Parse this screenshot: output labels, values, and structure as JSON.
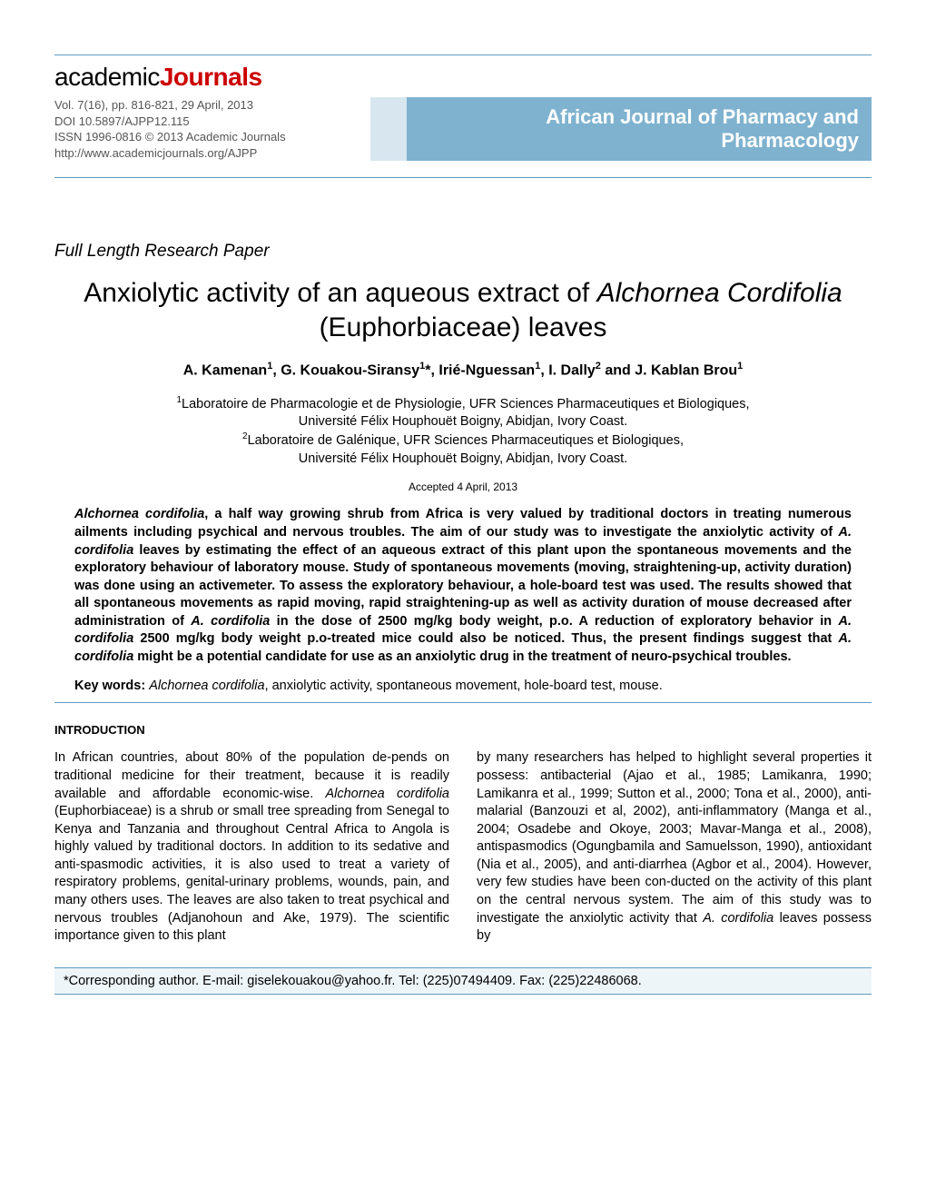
{
  "logo": {
    "part1": "academic",
    "part2": "Journals"
  },
  "meta": {
    "line1": "Vol. 7(16), pp. 816-821, 29 April, 2013",
    "line2": "DOI 10.5897/AJPP12.115",
    "line3": "ISSN 1996-0816 © 2013 Academic Journals",
    "line4": "http://www.academicjournals.org/AJPP"
  },
  "journal": {
    "line1": "African Journal of Pharmacy and",
    "line2": "Pharmacology"
  },
  "paper_type": "Full Length Research Paper",
  "title_pre": "Anxiolytic activity of an aqueous extract of ",
  "title_ital1": "Alchornea Cordifolia",
  "title_post": " (Euphorbiaceae) leaves",
  "authors_html": "A. Kamenan<sup>1</sup>, G. Kouakou-Siransy<sup>1</sup>*, Irié-Nguessan<sup>1</sup>, I. Dally<sup>2</sup> and J. Kablan Brou<sup>1</sup>",
  "affil1_html": "<sup>1</sup>Laboratoire de Pharmacologie et de Physiologie, UFR Sciences Pharmaceutiques et Biologiques,",
  "affil1b": "Université Félix Houphouët Boigny, Abidjan, Ivory Coast.",
  "affil2_html": "<sup>2</sup>Laboratoire de Galénique, UFR Sciences Pharmaceutiques et Biologiques,",
  "affil2b": "Université Félix Houphouët Boigny, Abidjan, Ivory Coast.",
  "accepted": "Accepted 4 April, 2013",
  "abstract_html": "<em>Alchornea cordifolia</em>, a half way growing shrub from Africa is very valued by traditional doctors in treating numerous ailments including psychical and nervous troubles. The aim of our study was to investigate the anxiolytic activity of <em>A. cordifolia</em> leaves by estimating the effect of an aqueous extract of this plant upon the spontaneous movements and the exploratory behaviour of laboratory mouse. Study of spontaneous movements (moving, straightening-up, activity duration) was done using an activemeter. To assess the exploratory behaviour, a hole-board test was used. The results showed that all spontaneous movements as rapid moving, rapid straightening-up as well as activity duration of mouse decreased after administration of <em>A. cordifolia</em> in the dose of 2500 mg/kg body weight, p.o. A reduction of exploratory behavior in <em>A. cordifolia</em> 2500 mg/kg body weight p.o-treated mice could also be noticed. Thus, the present findings suggest that <em>A. cordifolia</em> might be a potential candidate for use as an anxiolytic drug in the treatment of neuro-psychical troubles.",
  "keywords_label": "Key words:",
  "keywords_html": " <em>Alchornea cordifolia</em>, anxiolytic activity, spontaneous movement, hole-board test, mouse.",
  "section_intro": "INTRODUCTION",
  "col1_html": "In African countries, about 80% of the population de-pends on traditional medicine for their treatment, because it is readily available and affordable economic-wise. <em>Alchornea cordifolia</em> (Euphorbiaceae) is a shrub or small tree spreading from Senegal to Kenya and Tanzania and throughout Central Africa to Angola is highly valued by traditional doctors. In addition to its sedative and anti-spasmodic activities, it is also used to treat a variety of respiratory problems, genital-urinary problems, wounds, pain, and many others uses. The leaves are also taken to treat psychical and nervous troubles (Adjanohoun and Ake, 1979). The scientific importance given  to  this  plant",
  "col2_html": "by many researchers has helped to highlight several properties it possess: antibacterial (Ajao et al., 1985; Lamikanra, 1990; Lamikanra  et al., 1999; Sutton et al., 2000; Tona et al., 2000), anti-malarial (Banzouzi et al, 2002), anti-inflammatory (Manga et al., 2004; Osadebe and Okoye, 2003; Mavar-Manga et al., 2008), antispasmodics (Ogungbamila and Samuelsson, 1990), antioxidant (Nia et al., 2005), and anti-diarrhea (Agbor et al., 2004). However, very few studies have been con-ducted on the activity of this plant on the central nervous system. The aim of this study was to investigate the anxiolytic  activity  that  <em>A. cordifolia</em>  leaves  possess by",
  "corresponding": "*Corresponding author. E-mail: giselekouakou@yahoo.fr. Tel: (225)07494409. Fax: (225)22486068.",
  "colors": {
    "rule": "#5e9cc2",
    "journal_bg": "#7fb2cf",
    "spacer_bg": "#d7e6ef",
    "corresp_bg": "#eef5f9",
    "logo_red": "#c00"
  }
}
